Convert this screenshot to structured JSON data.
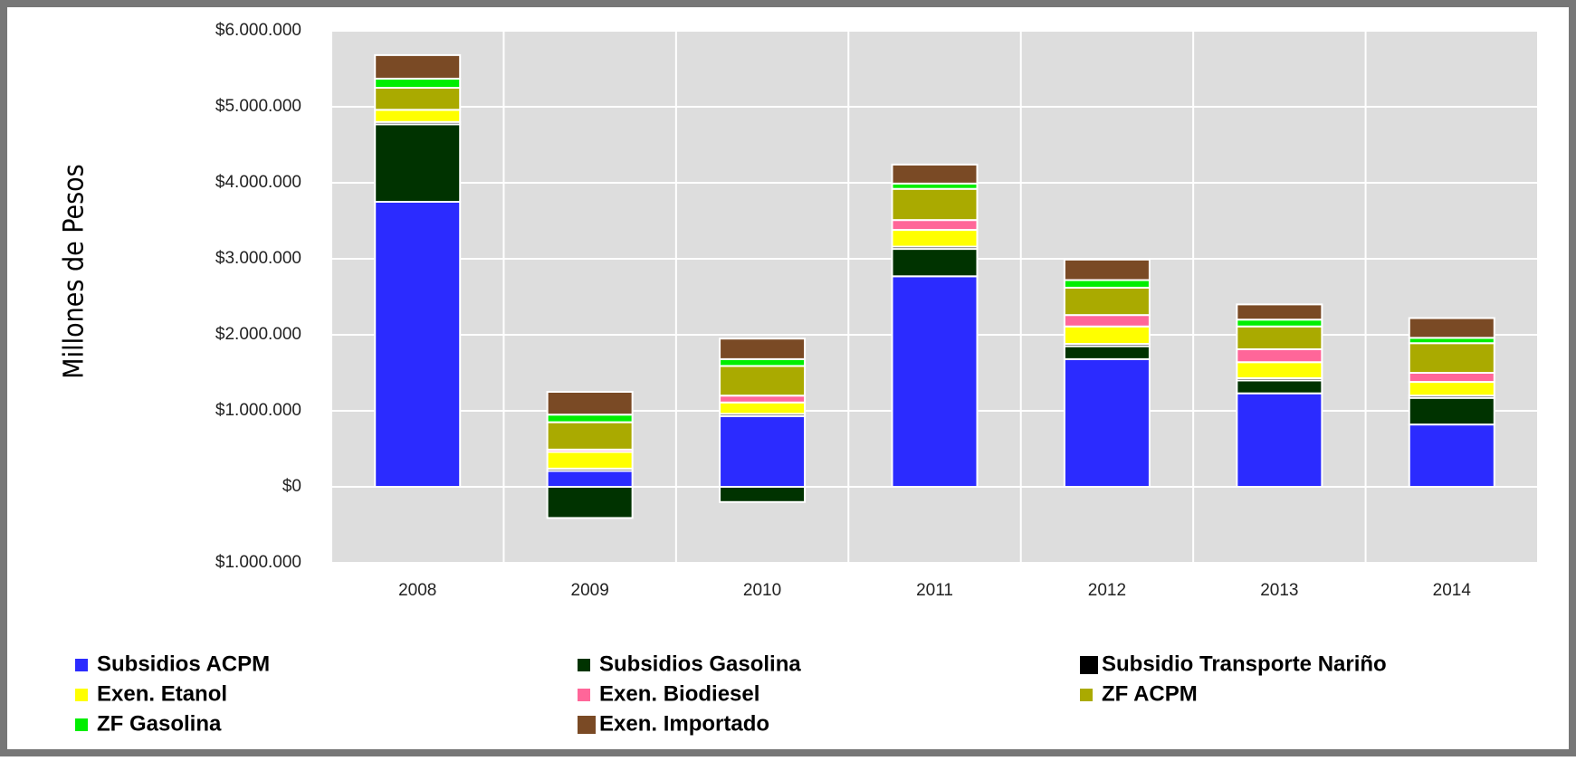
{
  "chart_data": {
    "type": "stacked_bar",
    "y_label": "Millones de Pesos",
    "categories": [
      "2008",
      "2009",
      "2010",
      "2011",
      "2012",
      "2013",
      "2014"
    ],
    "series": [
      {
        "name": "Subsidios ACPM",
        "color": "#2b2bff",
        "values": [
          3750000,
          210000,
          930000,
          2770000,
          1680000,
          1230000,
          820000
        ]
      },
      {
        "name": "Subsidios Gasolina",
        "color": "#003300",
        "values": [
          1020000,
          -410000,
          -200000,
          360000,
          170000,
          170000,
          350000
        ]
      },
      {
        "name": "Subsidio Transporte Nariño",
        "color": "#000000",
        "values": [
          30000,
          30000,
          30000,
          30000,
          30000,
          30000,
          30000
        ]
      },
      {
        "name": "Exen. Etanol",
        "color": "#ffff00",
        "values": [
          160000,
          220000,
          150000,
          220000,
          230000,
          210000,
          180000
        ]
      },
      {
        "name": "Exen. Biodiesel",
        "color": "#ff6699",
        "values": [
          0,
          30000,
          90000,
          130000,
          150000,
          170000,
          120000
        ]
      },
      {
        "name": "ZF ACPM",
        "color": "#aaaa00",
        "values": [
          290000,
          360000,
          390000,
          410000,
          360000,
          300000,
          390000
        ]
      },
      {
        "name": "ZF Gasolina",
        "color": "#00ee00",
        "values": [
          120000,
          100000,
          90000,
          70000,
          100000,
          90000,
          70000
        ]
      },
      {
        "name": "Exen. Importado",
        "color": "#7a4a25",
        "values": [
          310000,
          300000,
          270000,
          250000,
          270000,
          200000,
          260000
        ]
      }
    ],
    "ylim": [
      -1000000,
      6000000
    ],
    "yticks": [
      {
        "value": -1000000,
        "label": "$1.000.000"
      },
      {
        "value": 0,
        "label": "$0"
      },
      {
        "value": 1000000,
        "label": "$1.000.000"
      },
      {
        "value": 2000000,
        "label": "$2.000.000"
      },
      {
        "value": 3000000,
        "label": "$3.000.000"
      },
      {
        "value": 4000000,
        "label": "$4.000.000"
      },
      {
        "value": 5000000,
        "label": "$5.000.000"
      },
      {
        "value": 6000000,
        "label": "$6.000.000"
      }
    ],
    "negative_tick_color": "#ff0000",
    "grid": true,
    "legend": "bottom"
  }
}
